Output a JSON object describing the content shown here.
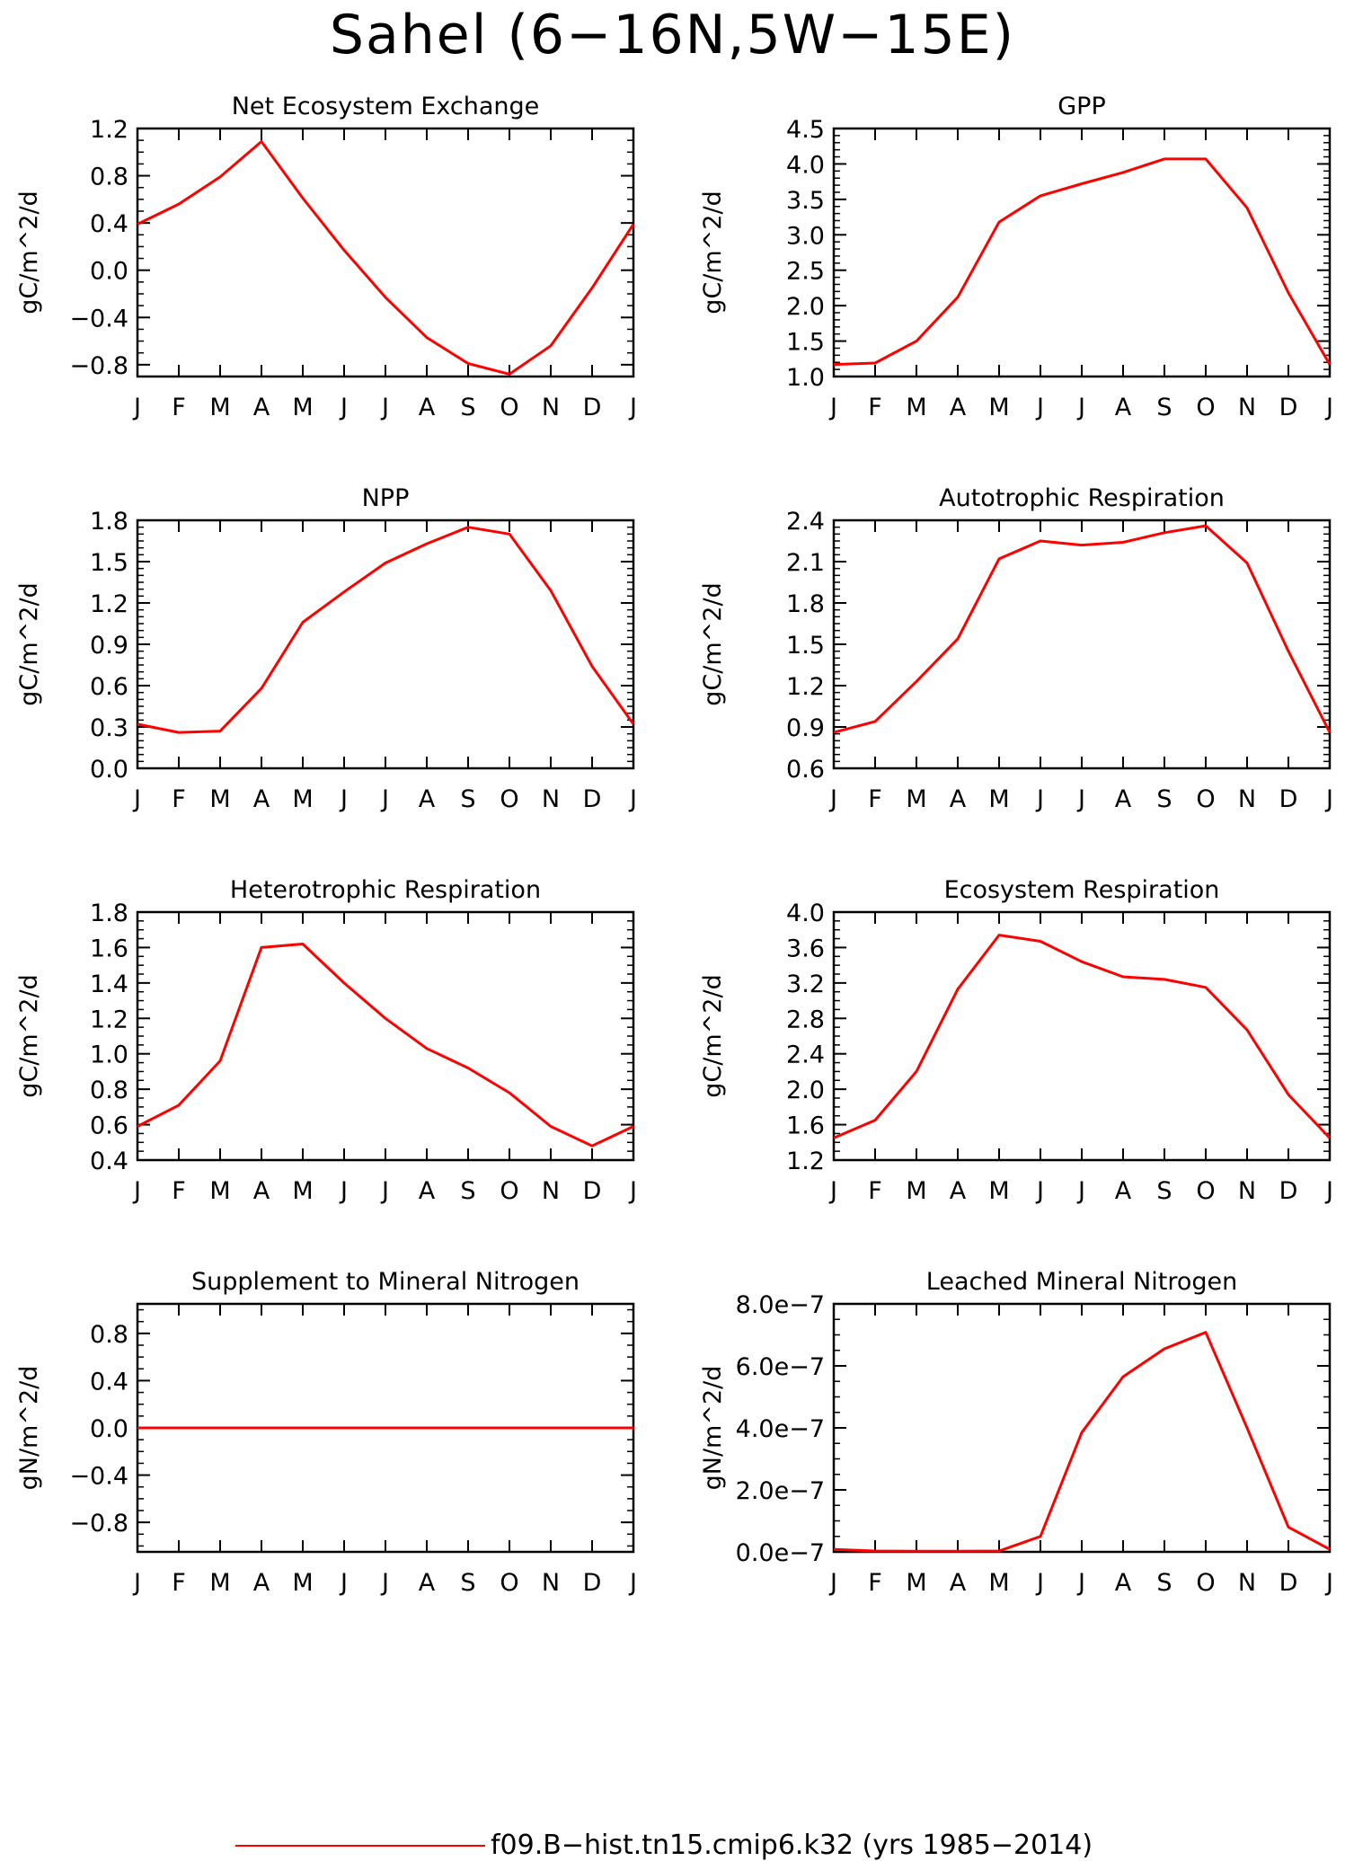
{
  "title": "Sahel (6−16N,5W−15E)",
  "colors": {
    "series": "#ff0000",
    "axis": "#000000"
  },
  "legend": {
    "label": "f09.B−hist.tn15.cmip6.k32 (yrs 1985−2014)"
  },
  "months": [
    "J",
    "F",
    "M",
    "A",
    "M",
    "J",
    "J",
    "A",
    "S",
    "O",
    "N",
    "D",
    "J"
  ],
  "chart_data": [
    {
      "type": "line",
      "title": "Net Ecosystem Exchange",
      "ylabel": "gC/m^2/d",
      "ylim": [
        -0.9,
        1.2
      ],
      "yticks": [
        -0.8,
        -0.4,
        0.0,
        0.4,
        0.8,
        1.2
      ],
      "ytick_labels": [
        "−0.8",
        "−0.4",
        "0.0",
        "0.4",
        "0.8",
        "1.2"
      ],
      "minor_step": 0.1,
      "values": [
        0.39,
        0.56,
        0.79,
        1.09,
        0.61,
        0.17,
        -0.23,
        -0.57,
        -0.79,
        -0.88,
        -0.64,
        -0.15,
        0.39
      ]
    },
    {
      "type": "line",
      "title": "GPP",
      "ylabel": "gC/m^2/d",
      "ylim": [
        1.0,
        4.5
      ],
      "yticks": [
        1.0,
        1.5,
        2.0,
        2.5,
        3.0,
        3.5,
        4.0,
        4.5
      ],
      "ytick_labels": [
        "1.0",
        "1.5",
        "2.0",
        "2.5",
        "3.0",
        "3.5",
        "4.0",
        "4.5"
      ],
      "minor_step": 0.1,
      "values": [
        1.17,
        1.19,
        1.5,
        2.12,
        3.18,
        3.55,
        3.72,
        3.88,
        4.07,
        4.07,
        3.38,
        2.18,
        1.17
      ]
    },
    {
      "type": "line",
      "title": "NPP",
      "ylabel": "gC/m^2/d",
      "ylim": [
        0.0,
        1.8
      ],
      "yticks": [
        0.0,
        0.3,
        0.6,
        0.9,
        1.2,
        1.5,
        1.8
      ],
      "ytick_labels": [
        "0.0",
        "0.3",
        "0.6",
        "0.9",
        "1.2",
        "1.5",
        "1.8"
      ],
      "minor_step": 0.05,
      "values": [
        0.32,
        0.26,
        0.27,
        0.58,
        1.06,
        1.28,
        1.49,
        1.63,
        1.75,
        1.7,
        1.29,
        0.74,
        0.32
      ]
    },
    {
      "type": "line",
      "title": "Autotrophic Respiration",
      "ylabel": "gC/m^2/d",
      "ylim": [
        0.6,
        2.4
      ],
      "yticks": [
        0.6,
        0.9,
        1.2,
        1.5,
        1.8,
        2.1,
        2.4
      ],
      "ytick_labels": [
        "0.6",
        "0.9",
        "1.2",
        "1.5",
        "1.8",
        "2.1",
        "2.4"
      ],
      "minor_step": 0.05,
      "values": [
        0.86,
        0.94,
        1.23,
        1.54,
        2.12,
        2.25,
        2.22,
        2.24,
        2.31,
        2.36,
        2.09,
        1.45,
        0.86
      ]
    },
    {
      "type": "line",
      "title": "Heterotrophic Respiration",
      "ylabel": "gC/m^2/d",
      "ylim": [
        0.4,
        1.8
      ],
      "yticks": [
        0.4,
        0.6,
        0.8,
        1.0,
        1.2,
        1.4,
        1.6,
        1.8
      ],
      "ytick_labels": [
        "0.4",
        "0.6",
        "0.8",
        "1.0",
        "1.2",
        "1.4",
        "1.6",
        "1.8"
      ],
      "minor_step": 0.05,
      "values": [
        0.59,
        0.71,
        0.96,
        1.6,
        1.62,
        1.4,
        1.2,
        1.03,
        0.92,
        0.78,
        0.59,
        0.48,
        0.59
      ]
    },
    {
      "type": "line",
      "title": "Ecosystem Respiration",
      "ylabel": "gC/m^2/d",
      "ylim": [
        1.2,
        4.0
      ],
      "yticks": [
        1.2,
        1.6,
        2.0,
        2.4,
        2.8,
        3.2,
        3.6,
        4.0
      ],
      "ytick_labels": [
        "1.2",
        "1.6",
        "2.0",
        "2.4",
        "2.8",
        "3.2",
        "3.6",
        "4.0"
      ],
      "minor_step": 0.1,
      "values": [
        1.45,
        1.65,
        2.2,
        3.13,
        3.74,
        3.67,
        3.44,
        3.27,
        3.24,
        3.15,
        2.67,
        1.94,
        1.45
      ]
    },
    {
      "type": "line",
      "title": "Supplement to Mineral Nitrogen",
      "ylabel": "gN/m^2/d",
      "ylim": [
        -1.05,
        1.05
      ],
      "yticks": [
        -0.8,
        -0.4,
        0.0,
        0.4,
        0.8
      ],
      "ytick_labels": [
        "−0.8",
        "−0.4",
        "0.0",
        "0.4",
        "0.8"
      ],
      "minor_step": 0.1,
      "values": [
        0,
        0,
        0,
        0,
        0,
        0,
        0,
        0,
        0,
        0,
        0,
        0,
        0
      ]
    },
    {
      "type": "line",
      "title": "Leached Mineral Nitrogen",
      "ylabel": "gN/m^2/d",
      "ylim": [
        0.0,
        8e-07
      ],
      "yticks": [
        0.0,
        2e-07,
        4e-07,
        6e-07,
        8e-07
      ],
      "ytick_labels": [
        "0.0e−7",
        "2.0e−7",
        "4.0e−7",
        "6.0e−7",
        "8.0e−7"
      ],
      "minor_step": 5e-08,
      "values": [
        8e-09,
        3e-09,
        2e-09,
        2e-09,
        3e-09,
        5e-08,
        3.85e-07,
        5.65e-07,
        6.55e-07,
        7.08e-07,
        4e-07,
        8e-08,
        8e-09
      ]
    }
  ]
}
